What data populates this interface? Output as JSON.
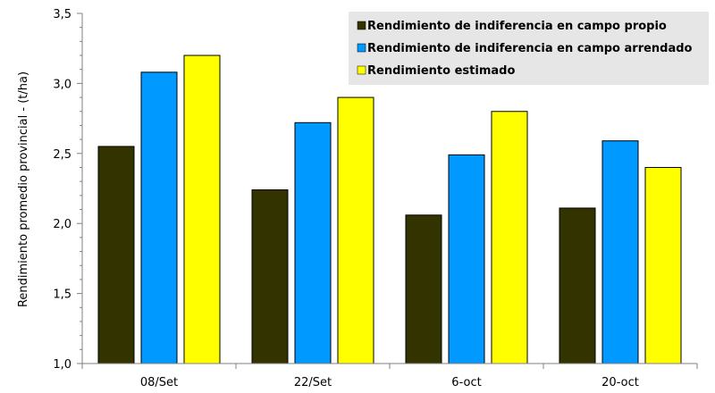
{
  "chart_data": {
    "type": "bar",
    "categories": [
      "08/Set",
      "22/Set",
      "6-oct",
      "20-oct"
    ],
    "series": [
      {
        "name": "Rendimiento de indiferencia en campo propio",
        "color": "#333300",
        "values": [
          2.55,
          2.24,
          2.06,
          2.11
        ]
      },
      {
        "name": "Rendimiento de indiferencia en campo arrendado",
        "color": "#0099FF",
        "values": [
          3.08,
          2.72,
          2.49,
          2.59
        ]
      },
      {
        "name": "Rendimiento estimado",
        "color": "#FFFF00",
        "values": [
          3.2,
          2.9,
          2.8,
          2.4
        ]
      }
    ],
    "ylabel": "Rendimiento promedio provincial  - (t/ha)",
    "xlabel": "",
    "ylim": [
      1.0,
      3.5
    ],
    "yticks": [
      "1,0",
      "1,5",
      "2,0",
      "2,5",
      "3,0",
      "3,5"
    ],
    "legend_position": "top-right",
    "grid": false
  }
}
